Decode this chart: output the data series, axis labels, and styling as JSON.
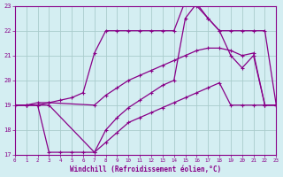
{
  "xlabel": "Windchill (Refroidissement éolien,°C)",
  "background_color": "#d4eef2",
  "grid_color": "#b8dde4",
  "line_color": "#880088",
  "xlim": [
    0,
    23
  ],
  "ylim": [
    17,
    23
  ],
  "line1_x": [
    0,
    1,
    2,
    3,
    4,
    5,
    6,
    7,
    8,
    9,
    10,
    11,
    12,
    13,
    14,
    15,
    16,
    17,
    18,
    19,
    20,
    21,
    22,
    23
  ],
  "line1_y": [
    19.0,
    19.0,
    19.1,
    19.1,
    19.2,
    19.3,
    19.5,
    21.1,
    22.0,
    22.0,
    22.0,
    22.0,
    22.0,
    22.0,
    22.0,
    23.2,
    23.0,
    22.5,
    22.0,
    22.0,
    22.0,
    22.0,
    22.0,
    19.0
  ],
  "line2_x": [
    0,
    1,
    2,
    3,
    7,
    8,
    9,
    10,
    11,
    12,
    13,
    14,
    15,
    16,
    17,
    18,
    19,
    20,
    21,
    22,
    23
  ],
  "line2_y": [
    19.0,
    19.0,
    19.0,
    19.1,
    19.0,
    19.4,
    19.7,
    20.0,
    20.2,
    20.4,
    20.6,
    20.8,
    21.0,
    21.2,
    21.3,
    21.3,
    21.2,
    21.0,
    21.1,
    19.0,
    19.0
  ],
  "line3_x": [
    0,
    1,
    2,
    3,
    7,
    8,
    9,
    10,
    11,
    12,
    13,
    14,
    15,
    16,
    17,
    18,
    19,
    20,
    21,
    22,
    23
  ],
  "line3_y": [
    19.0,
    19.0,
    19.0,
    19.0,
    17.1,
    17.5,
    17.9,
    18.3,
    18.5,
    18.7,
    18.9,
    19.1,
    19.3,
    19.5,
    19.7,
    19.9,
    19.0,
    19.0,
    19.0,
    19.0,
    19.0
  ],
  "line4_x": [
    0,
    1,
    2,
    3,
    4,
    5,
    6,
    7,
    8,
    9,
    10,
    11,
    12,
    13,
    14,
    15,
    16,
    17,
    18,
    19,
    20,
    21,
    22,
    23
  ],
  "line4_y": [
    19.0,
    19.0,
    19.0,
    17.1,
    17.1,
    17.1,
    17.1,
    17.1,
    18.0,
    18.5,
    18.9,
    19.2,
    19.5,
    19.8,
    20.0,
    22.5,
    23.1,
    22.5,
    22.0,
    21.0,
    20.5,
    21.0,
    19.0,
    19.0
  ]
}
